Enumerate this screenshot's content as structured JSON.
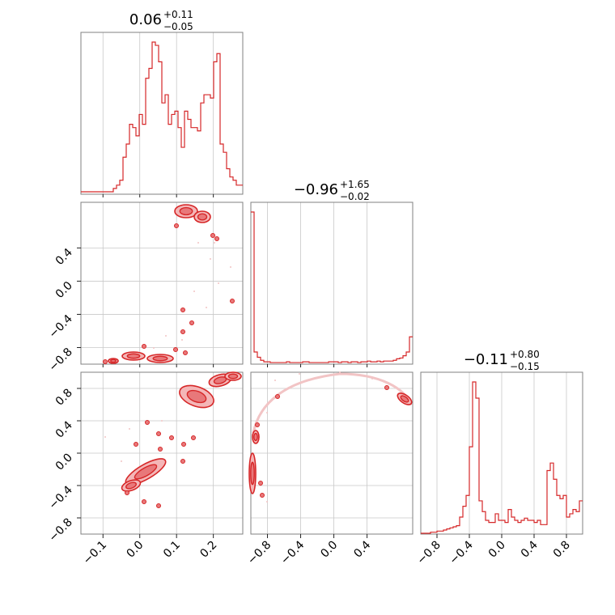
{
  "colors": {
    "accent": "#d62728",
    "fill_light": "#f4b6b7",
    "fill_mid": "#e8787a",
    "scatter": "#f2c4c5"
  },
  "chart_data": {
    "type": "corner",
    "description_of_layout": "3x3 lower-triangular corner plot; diagonal = 1D histograms, off-diagonal = 2D contour plots",
    "parameters": [
      {
        "median": "0.06",
        "plus": "+0.11",
        "minus": "−0.05",
        "range": [
          -0.16,
          0.28
        ],
        "ticks": [
          "−0.1",
          "0.0",
          "0.1",
          "0.2"
        ],
        "tick_values": [
          -0.1,
          0.0,
          0.1,
          0.2
        ]
      },
      {
        "median": "−0.96",
        "plus": "+1.65",
        "minus": "−0.02",
        "range": [
          -1.0,
          0.95
        ],
        "ticks": [
          "−0.8",
          "−0.4",
          "0.0",
          "0.4"
        ],
        "tick_values": [
          -0.8,
          -0.4,
          0.0,
          0.4
        ]
      },
      {
        "median": "−0.11",
        "plus": "+0.80",
        "minus": "−0.15",
        "range": [
          -1.0,
          1.0
        ],
        "ticks": [
          "−0.8",
          "−0.4",
          "0.0",
          "0.4",
          "0.8"
        ],
        "tick_values": [
          -0.8,
          -0.4,
          0.0,
          0.4,
          0.8
        ]
      }
    ],
    "hist1": {
      "edges_start": -0.16,
      "bin_width": 0.0088,
      "counts": [
        1,
        1,
        1,
        1,
        1,
        1,
        1,
        1,
        1,
        1,
        3,
        5,
        8,
        22,
        30,
        42,
        40,
        35,
        48,
        42,
        70,
        76,
        92,
        90,
        80,
        55,
        60,
        42,
        48,
        50,
        40,
        28,
        50,
        45,
        40,
        40,
        38,
        55,
        60,
        60,
        58,
        80,
        85,
        30,
        25,
        15,
        10,
        8,
        5,
        5
      ]
    },
    "hist2": {
      "edges_start": -1.0,
      "bin_width": 0.039,
      "counts": [
        200,
        15,
        8,
        4,
        2,
        2,
        1,
        1,
        1,
        1,
        1,
        2,
        1,
        1,
        1,
        1,
        2,
        2,
        1,
        1,
        1,
        1,
        1,
        1,
        2,
        2,
        2,
        1,
        2,
        2,
        1,
        2,
        2,
        1,
        2,
        2,
        3,
        2,
        2,
        3,
        2,
        3,
        3,
        3,
        4,
        6,
        7,
        10,
        15,
        35
      ]
    },
    "hist3": {
      "edges_start": -1.0,
      "bin_width": 0.04,
      "counts": [
        0,
        0,
        0,
        1,
        1,
        2,
        2,
        3,
        4,
        5,
        6,
        7,
        15,
        25,
        35,
        80,
        140,
        125,
        30,
        20,
        12,
        10,
        10,
        18,
        12,
        12,
        10,
        22,
        15,
        12,
        10,
        12,
        14,
        12,
        12,
        10,
        12,
        8,
        8,
        58,
        65,
        50,
        35,
        32,
        35,
        15,
        18,
        22,
        20,
        30
      ]
    },
    "panel_titles_note": "titles shown above diagonal panels"
  }
}
